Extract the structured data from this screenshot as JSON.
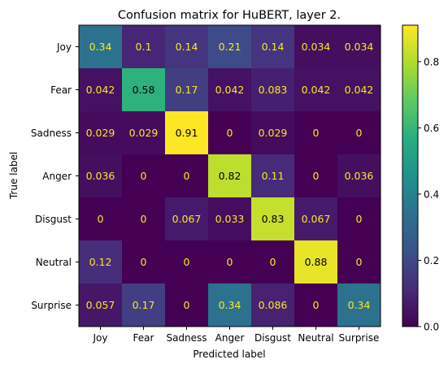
{
  "chart_data": {
    "type": "heatmap",
    "title": "Confusion matrix for HuBERT, layer 2.",
    "xlabel": "Predicted label",
    "ylabel": "True label",
    "x_categories": [
      "Joy",
      "Fear",
      "Sadness",
      "Anger",
      "Disgust",
      "Neutral",
      "Surprise"
    ],
    "y_categories": [
      "Joy",
      "Fear",
      "Sadness",
      "Anger",
      "Disgust",
      "Neutral",
      "Surprise"
    ],
    "values": [
      [
        0.34,
        0.1,
        0.14,
        0.21,
        0.14,
        0.034,
        0.034
      ],
      [
        0.042,
        0.58,
        0.17,
        0.042,
        0.083,
        0.042,
        0.042
      ],
      [
        0.029,
        0.029,
        0.91,
        0,
        0.029,
        0,
        0
      ],
      [
        0.036,
        0,
        0,
        0.82,
        0.11,
        0,
        0.036
      ],
      [
        0,
        0,
        0.067,
        0.033,
        0.83,
        0.067,
        0
      ],
      [
        0.12,
        0,
        0,
        0,
        0,
        0.88,
        0
      ],
      [
        0.057,
        0.17,
        0,
        0.34,
        0.086,
        0,
        0.34
      ]
    ],
    "cell_labels": [
      [
        "0.34",
        "0.1",
        "0.14",
        "0.21",
        "0.14",
        "0.034",
        "0.034"
      ],
      [
        "0.042",
        "0.58",
        "0.17",
        "0.042",
        "0.083",
        "0.042",
        "0.042"
      ],
      [
        "0.029",
        "0.029",
        "0.91",
        "0",
        "0.029",
        "0",
        "0"
      ],
      [
        "0.036",
        "0",
        "0",
        "0.82",
        "0.11",
        "0",
        "0.036"
      ],
      [
        "0",
        "0",
        "0.067",
        "0.033",
        "0.83",
        "0.067",
        "0"
      ],
      [
        "0.12",
        "0",
        "0",
        "0",
        "0",
        "0.88",
        "0"
      ],
      [
        "0.057",
        "0.17",
        "0",
        "0.34",
        "0.086",
        "0",
        "0.34"
      ]
    ],
    "colormap": "viridis",
    "colorbar": {
      "range": [
        0,
        0.91
      ],
      "ticks": [
        0.0,
        0.2,
        0.4,
        0.6,
        0.8
      ],
      "tick_labels": [
        "0.0",
        "0.2",
        "0.4",
        "0.6",
        "0.8"
      ]
    },
    "text_colors": {
      "light": "#fde725",
      "dark": "#000000"
    },
    "grid": false
  }
}
